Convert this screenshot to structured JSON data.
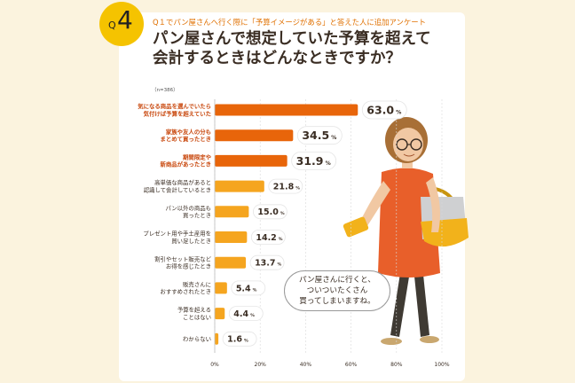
{
  "badge": {
    "q": "Q",
    "number": "4"
  },
  "subtitle": "Q１でパン屋さんへ行く際に「予算イメージがある」と答えた人に追加アンケート",
  "title_line1": "パン屋さんで想定していた予算を超えて",
  "title_line2": "会計するときはどんなときですか？",
  "sample_note": "（n=386）",
  "speech": {
    "line1": "パン屋さんに行くと、",
    "line2": "ついついたくさん",
    "line3": "買ってしまいますね。"
  },
  "colors": {
    "top": "#e8650a",
    "rest": "#f5a51f",
    "top_text": "#c8460b",
    "text": "#3a2d23"
  },
  "chart_data": {
    "type": "bar",
    "orientation": "horizontal",
    "categories": [
      [
        "気になる商品を選んでいたら",
        "気付けば予算を超えていた"
      ],
      [
        "家族や友人の分も",
        "まとめて買ったとき"
      ],
      [
        "期間限定や",
        "新商品があったとき"
      ],
      [
        "高単価な商品があると",
        "認識して会計しているとき"
      ],
      [
        "パン以外の商品も",
        "買ったとき"
      ],
      [
        "プレゼント用や手土産用を",
        "買い足したとき"
      ],
      [
        "割引やセット販売など",
        "お得を感じたとき"
      ],
      [
        "販売さんに",
        "おすすめされたとき"
      ],
      [
        "予算を超える",
        "ことはない"
      ],
      [
        "わからない"
      ]
    ],
    "values": [
      63.0,
      34.5,
      31.9,
      21.8,
      15.0,
      14.2,
      13.7,
      5.4,
      4.4,
      1.6
    ],
    "value_labels": [
      "63.0",
      "34.5",
      "31.9",
      "21.8",
      "15.0",
      "14.2",
      "13.7",
      "5.4",
      "4.4",
      "1.6"
    ],
    "unit": "%",
    "highlight_count": 3,
    "x_ticks": [
      "0%",
      "20%",
      "40%",
      "60%",
      "80%",
      "100%"
    ],
    "xlim": [
      0,
      100
    ]
  }
}
